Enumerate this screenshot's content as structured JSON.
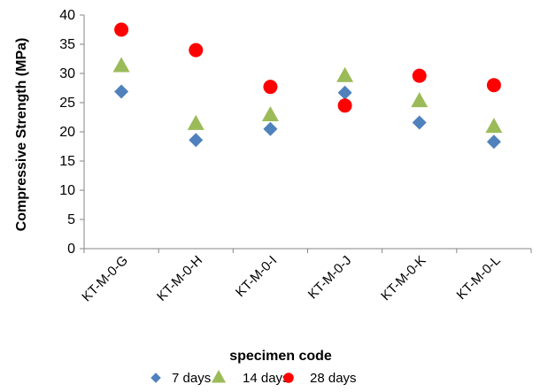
{
  "chart_data": {
    "type": "scatter",
    "title": "",
    "xlabel": "specimen code",
    "ylabel": "Compressive Strength (MPa)",
    "categories": [
      "KT-M-0-G",
      "KT-M-0-H",
      "KT-M-0-I",
      "KT-M-0-J",
      "KT-M-0-K",
      "KT-M-0-L"
    ],
    "ylim": [
      0,
      40
    ],
    "yticks": [
      0,
      5,
      10,
      15,
      20,
      25,
      30,
      35,
      40
    ],
    "grid": false,
    "legend_position": "bottom",
    "series": [
      {
        "name": "7 days",
        "marker": "diamond",
        "color": "#4F81BD",
        "values": [
          26.9,
          18.6,
          20.5,
          26.7,
          21.6,
          18.3
        ]
      },
      {
        "name": "14 days",
        "marker": "triangle",
        "color": "#9BBB59",
        "values": [
          31.2,
          21.3,
          22.8,
          29.5,
          25.2,
          20.8
        ]
      },
      {
        "name": "28 days",
        "marker": "circle",
        "color": "#FF0000",
        "values": [
          37.5,
          34.0,
          27.7,
          24.5,
          29.6,
          28.0
        ]
      }
    ]
  }
}
